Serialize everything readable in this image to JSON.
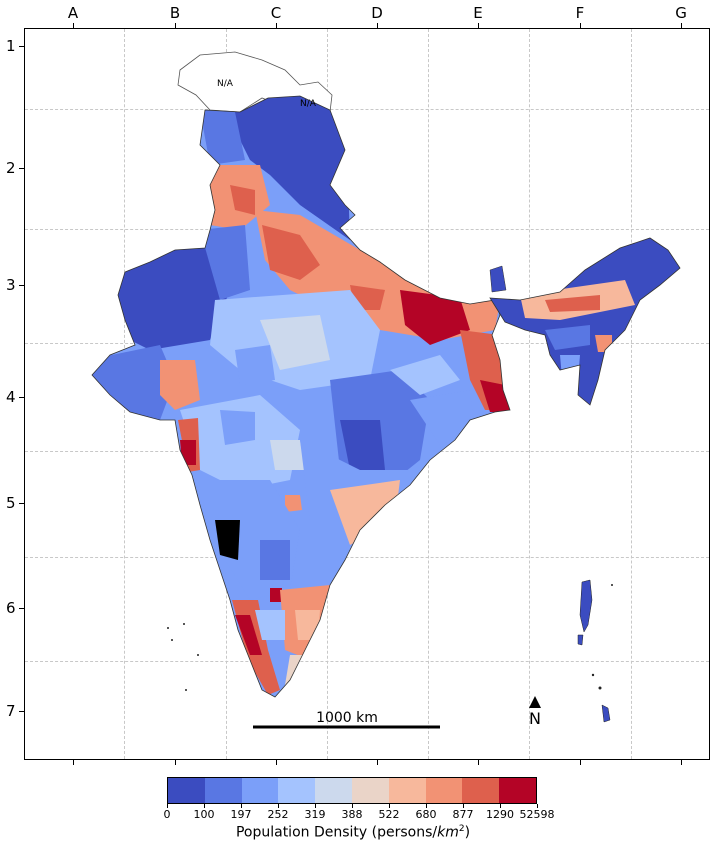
{
  "grid": {
    "columns": [
      "A",
      "B",
      "C",
      "D",
      "E",
      "F",
      "G"
    ],
    "rows": [
      "1",
      "2",
      "3",
      "4",
      "5",
      "6",
      "7"
    ]
  },
  "na_label": "N/A",
  "scale_bar_label": "1000 km",
  "north_label": "N",
  "legend": {
    "title_prefix": "Population Density (persons/",
    "title_unit": "km",
    "title_exp": "2",
    "title_suffix": ")",
    "ticks": [
      "0",
      "100",
      "197",
      "252",
      "319",
      "388",
      "522",
      "680",
      "877",
      "1290",
      "52598"
    ],
    "colors": [
      "#3b4cc0",
      "#5977e3",
      "#7b9ff9",
      "#a4c3fe",
      "#ccd9ed",
      "#ead4c8",
      "#f7b89c",
      "#f29274",
      "#de604d",
      "#b40426"
    ]
  },
  "palette": {
    "no_data": "#ffffff",
    "boundary": "#555555"
  }
}
